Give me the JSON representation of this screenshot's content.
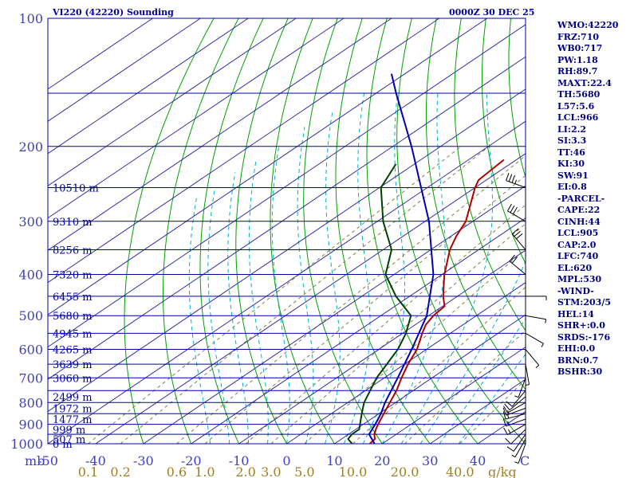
{
  "header": {
    "station": "VI220 (42220) Sounding",
    "valid": "0000Z 30 DEC 25"
  },
  "indices": [
    "WMO:42220",
    "FRZ:710",
    "WB0:717",
    "PW:1.18",
    "RH:89.7",
    "MAXT:22.4",
    "TH:5680",
    "L57:5.6",
    "LCL:966",
    "LI:2.2",
    "SI:3.3",
    "TT:46",
    "KI:30",
    "SW:91",
    "EI:0.8",
    "-PARCEL-",
    "CAPE:22",
    "CINH:44",
    "LCL:905",
    "CAP:2.0",
    "LFC:740",
    "EL:620",
    "MPL:530",
    "-WIND-",
    "STM:203/5",
    "HEL:14",
    "SHR+:0.0",
    "SRDS:-176",
    "EHI:0.0",
    "BRN:0.7",
    "BSHR:30"
  ],
  "chart_data": {
    "type": "line",
    "plot": "skew-T log-p thermodynamic diagram",
    "pressure_axis": {
      "unit": "mb",
      "scale": "log",
      "range": [
        1000,
        100
      ],
      "ticks": [
        "100",
        "200",
        "300",
        "400",
        "500",
        "600",
        "700",
        "800",
        "900",
        "1000"
      ]
    },
    "temperature_axis": {
      "unit_label": "C",
      "skewed": true,
      "range": [
        -50,
        50
      ],
      "ticks": [
        "-50",
        "-40",
        "-30",
        "-20",
        "-10",
        "0",
        "10",
        "20",
        "30",
        "40"
      ]
    },
    "mixing_ratio_axis": {
      "unit_label": "g/kg",
      "ticks": [
        "0.1",
        "0.2",
        "0.6",
        "1.0",
        "2.0",
        "3.0",
        "5.0",
        "10.0",
        "20.0",
        "40.0"
      ]
    },
    "mandatory_levels": [
      {
        "p": 1000,
        "height": "0 m"
      },
      {
        "p": 975,
        "height": "507 m"
      },
      {
        "p": 925,
        "height": "999 m"
      },
      {
        "p": 875,
        "height": "1477 m"
      },
      {
        "p": 825,
        "height": "1972 m"
      },
      {
        "p": 775,
        "height": "2499 m"
      },
      {
        "p": 700,
        "height": "3060 m"
      },
      {
        "p": 650,
        "height": "3639 m"
      },
      {
        "p": 600,
        "height": "4265 m"
      },
      {
        "p": 550,
        "height": "4945 m"
      },
      {
        "p": 500,
        "height": "5680 m"
      },
      {
        "p": 450,
        "height": "6455 m"
      },
      {
        "p": 400,
        "height": "7320 m"
      },
      {
        "p": 350,
        "height": "8256 m"
      },
      {
        "p": 300,
        "height": "9310 m"
      },
      {
        "p": 250,
        "height": "10510 m"
      }
    ],
    "series": [
      {
        "color": "#b00000",
        "points": [
          {
            "p": 1000,
            "t": 17.4
          },
          {
            "p": 975,
            "t": 17.0
          },
          {
            "p": 950,
            "t": 15.4
          },
          {
            "p": 925,
            "t": 14.2
          },
          {
            "p": 900,
            "t": 13.1
          },
          {
            "p": 850,
            "t": 11.0
          },
          {
            "p": 800,
            "t": 8.8
          },
          {
            "p": 750,
            "t": 6.5
          },
          {
            "p": 700,
            "t": 3.6
          },
          {
            "p": 650,
            "t": 0.7
          },
          {
            "p": 600,
            "t": -2.0
          },
          {
            "p": 550,
            "t": -5.9
          },
          {
            "p": 525,
            "t": -7.8
          },
          {
            "p": 500,
            "t": -9.0
          },
          {
            "p": 475,
            "t": -9.6
          },
          {
            "p": 450,
            "t": -13.0
          },
          {
            "p": 400,
            "t": -19.5
          },
          {
            "p": 350,
            "t": -26.0
          },
          {
            "p": 325,
            "t": -28.9
          },
          {
            "p": 300,
            "t": -31.5
          },
          {
            "p": 250,
            "t": -40.0
          },
          {
            "p": 240,
            "t": -41.6
          },
          {
            "p": 215,
            "t": -42.6
          }
        ]
      },
      {
        "color": "#004000",
        "points": [
          {
            "p": 1000,
            "t": 13.7
          },
          {
            "p": 975,
            "t": 11.4
          },
          {
            "p": 950,
            "t": 10.7
          },
          {
            "p": 925,
            "t": 10.7
          },
          {
            "p": 850,
            "t": 6.4
          },
          {
            "p": 800,
            "t": 3.4
          },
          {
            "p": 700,
            "t": -1.6
          },
          {
            "p": 600,
            "t": -6.0
          },
          {
            "p": 550,
            "t": -9.3
          },
          {
            "p": 500,
            "t": -13.7
          },
          {
            "p": 450,
            "t": -22.9
          },
          {
            "p": 400,
            "t": -31.8
          },
          {
            "p": 350,
            "t": -38.2
          },
          {
            "p": 300,
            "t": -48.8
          },
          {
            "p": 250,
            "t": -59.7
          },
          {
            "p": 220,
            "t": -63.9
          }
        ]
      },
      {
        "color": "#0000b0",
        "points": [
          {
            "p": 1000,
            "t": 18.4
          },
          {
            "p": 950,
            "t": 14.3
          },
          {
            "p": 900,
            "t": 12.5
          },
          {
            "p": 850,
            "t": 10.4
          },
          {
            "p": 800,
            "t": 7.8
          },
          {
            "p": 700,
            "t": 2.8
          },
          {
            "p": 600,
            "t": -3.1
          },
          {
            "p": 500,
            "t": -10.4
          },
          {
            "p": 400,
            "t": -21.8
          },
          {
            "p": 300,
            "t": -39.2
          },
          {
            "p": 200,
            "t": -66.1
          },
          {
            "p": 150,
            "t": -85.8
          },
          {
            "p": 135,
            "t": -92.8
          }
        ]
      }
    ],
    "wind_barbs": [
      {
        "p": 1000,
        "dir": 200,
        "kt": 5
      },
      {
        "p": 975,
        "dir": 210,
        "kt": 5
      },
      {
        "p": 950,
        "dir": 215,
        "kt": 10
      },
      {
        "p": 925,
        "dir": 225,
        "kt": 10
      },
      {
        "p": 900,
        "dir": 240,
        "kt": 15
      },
      {
        "p": 875,
        "dir": 250,
        "kt": 15
      },
      {
        "p": 850,
        "dir": 255,
        "kt": 15
      },
      {
        "p": 825,
        "dir": 250,
        "kt": 15
      },
      {
        "p": 800,
        "dir": 240,
        "kt": 10
      },
      {
        "p": 775,
        "dir": 230,
        "kt": 10
      },
      {
        "p": 750,
        "dir": 220,
        "kt": 10
      },
      {
        "p": 700,
        "dir": 200,
        "kt": 5
      },
      {
        "p": 650,
        "dir": 170,
        "kt": 5
      },
      {
        "p": 600,
        "dir": 140,
        "kt": 5
      },
      {
        "p": 550,
        "dir": 120,
        "kt": 5
      },
      {
        "p": 500,
        "dir": 100,
        "kt": 5
      },
      {
        "p": 450,
        "dir": 90,
        "kt": 5
      },
      {
        "p": 400,
        "dir": 310,
        "kt": 20
      },
      {
        "p": 350,
        "dir": 320,
        "kt": 30
      },
      {
        "p": 300,
        "dir": 300,
        "kt": 30
      },
      {
        "p": 250,
        "dir": 290,
        "kt": 35
      }
    ],
    "grid": true,
    "colors": {
      "isobar": "#0000a0",
      "isotherm": "#3030a0",
      "dry_adiabat": "#00a000",
      "moist_adiabat": "#00b0d0",
      "mixing_ratio": "#808040",
      "axis_text": "#4040c0",
      "mixing_text": "#a08020",
      "level_text": "#0000a0",
      "wind_barb": "#000000"
    }
  }
}
